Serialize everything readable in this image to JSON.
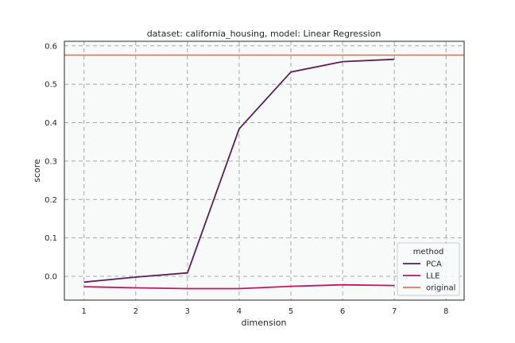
{
  "chart_data": {
    "type": "line",
    "title": "dataset: california_housing, model: Linear Regression",
    "xlabel": "dimension",
    "ylabel": "score",
    "xlim": [
      0.62,
      8.35
    ],
    "ylim": [
      -0.062,
      0.612
    ],
    "xticks": [
      1,
      2,
      3,
      4,
      5,
      6,
      7,
      8
    ],
    "yticks": [
      0.0,
      0.1,
      0.2,
      0.3,
      0.4,
      0.5,
      0.6
    ],
    "ytick_labels": [
      "0.0",
      "0.1",
      "0.2",
      "0.3",
      "0.4",
      "0.5",
      "0.6"
    ],
    "grid": true,
    "legend": {
      "title": "method",
      "position": "lower-right"
    },
    "series": [
      {
        "name": "PCA",
        "color": "#5b1f57",
        "x": [
          1,
          2,
          3,
          4,
          5,
          6,
          7
        ],
        "values": [
          -0.015,
          -0.002,
          0.009,
          0.384,
          0.532,
          0.559,
          0.565
        ]
      },
      {
        "name": "LLE",
        "color": "#c2185b",
        "x": [
          1,
          2,
          3,
          4,
          5,
          6,
          7
        ],
        "values": [
          -0.027,
          -0.03,
          -0.032,
          -0.032,
          -0.026,
          -0.022,
          -0.024
        ]
      },
      {
        "name": "original",
        "color": "#e8744d",
        "type": "hline",
        "value": 0.576
      }
    ]
  }
}
